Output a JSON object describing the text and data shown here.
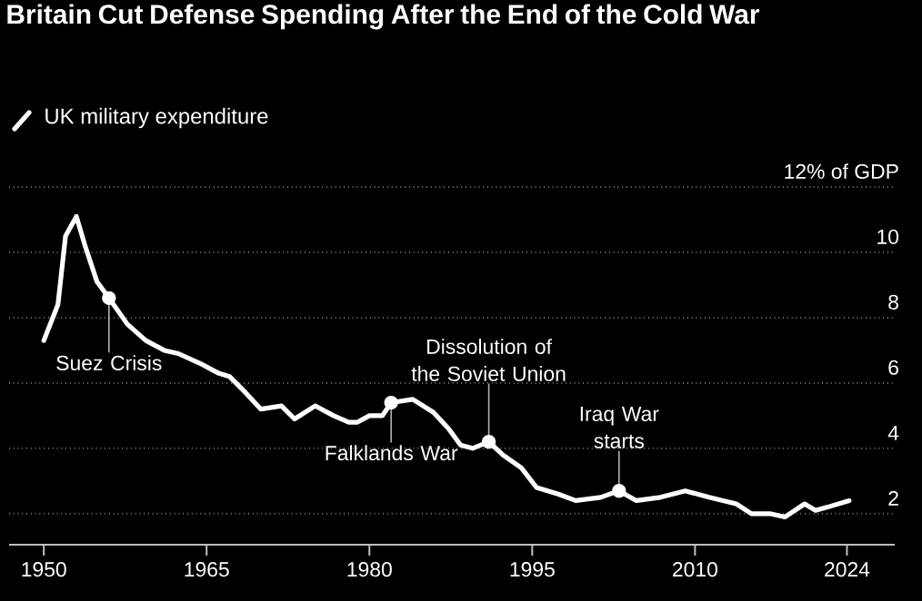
{
  "chart_data": {
    "type": "line",
    "title": "Britain Cut Defense Spending After the End of the Cold War",
    "x": [
      1950,
      1951.3,
      1952,
      1953,
      1953.8,
      1954.9,
      1956,
      1957.7,
      1959.4,
      1961.1,
      1962.4,
      1964.4,
      1966.1,
      1967.1,
      1968.6,
      1970,
      1971.9,
      1973.1,
      1975,
      1976.7,
      1978.1,
      1978.9,
      1980,
      1981.2,
      1982,
      1984,
      1985.9,
      1987.3,
      1988.4,
      1989.5,
      1991,
      1992.3,
      1994,
      1995.4,
      1997.4,
      1999,
      2001.3,
      2003,
      2004.6,
      2006.8,
      2009.1,
      2011.3,
      2013.8,
      2015.2,
      2016.9,
      2018.3,
      2020.1,
      2021.1,
      2022.2,
      2024.2
    ],
    "series": [
      {
        "name": "UK military expenditure",
        "color": "#ffffff",
        "values": [
          7.3,
          8.4,
          10.5,
          11.1,
          10.2,
          9.1,
          8.6,
          7.8,
          7.3,
          7.0,
          6.9,
          6.6,
          6.3,
          6.2,
          5.7,
          5.2,
          5.3,
          4.9,
          5.3,
          5.0,
          4.8,
          4.8,
          5.0,
          5.0,
          5.4,
          5.5,
          5.1,
          4.6,
          4.1,
          4.0,
          4.2,
          3.8,
          3.4,
          2.8,
          2.6,
          2.4,
          2.5,
          2.7,
          2.4,
          2.5,
          2.7,
          2.5,
          2.3,
          2.0,
          2.0,
          1.9,
          2.3,
          2.1,
          2.2,
          2.4
        ]
      }
    ],
    "xlim": [
      1946.8,
      2028.4
    ],
    "xticks": [
      1950,
      1965,
      1980,
      1995,
      2010,
      2024
    ],
    "ylim": [
      1.05,
      12
    ],
    "yticks": [
      2,
      4,
      6,
      8,
      10,
      {
        "value": 12,
        "label": "12% of GDP"
      }
    ],
    "grid": "y",
    "legend": "top left",
    "marker": "none",
    "line_style": "solid",
    "annotations": [
      {
        "text": "Suez Crisis",
        "x": 1956,
        "y": 8.6
      },
      {
        "text": "Falklands War",
        "x": 1982,
        "y": 5.4
      },
      {
        "text": "Dissolution of the Soviet Union",
        "x": 1991,
        "y": 4.2
      },
      {
        "text": "Iraq War starts",
        "x": 2003,
        "y": 2.7
      }
    ]
  }
}
